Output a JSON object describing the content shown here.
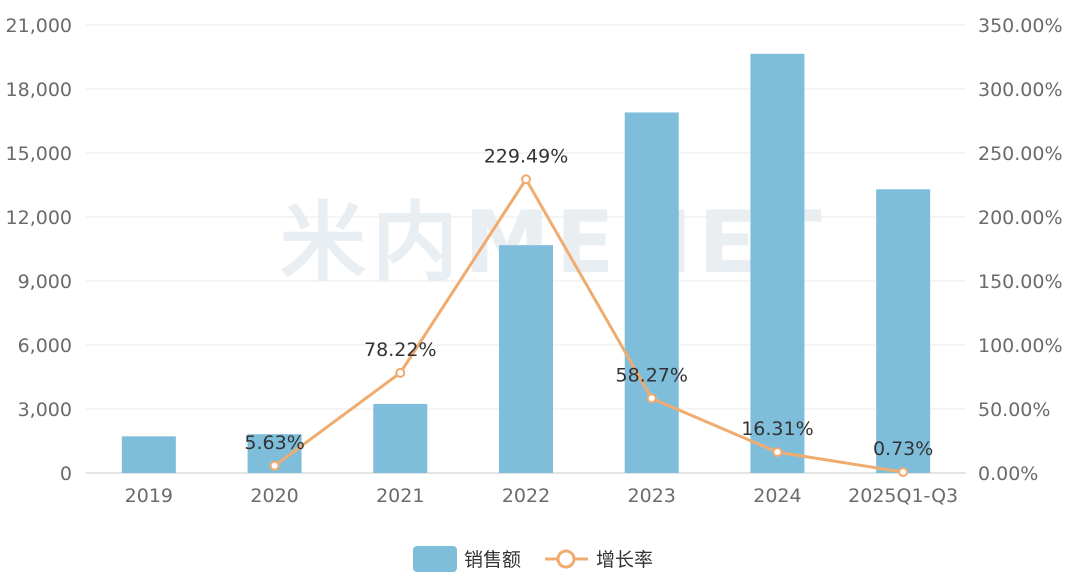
{
  "watermark": "米内MENET",
  "chart_data": {
    "type": "bar",
    "categories": [
      "2019",
      "2020",
      "2021",
      "2022",
      "2023",
      "2024",
      "2025Q1-Q3"
    ],
    "series": [
      {
        "name": "销售额",
        "type": "bar",
        "axis": "left",
        "color": "#7fbedb",
        "values": [
          1720,
          1820,
          3240,
          10680,
          16900,
          19650,
          13300
        ]
      },
      {
        "name": "增长率",
        "type": "line",
        "axis": "right",
        "color": "#f0ac6f",
        "values": [
          null,
          5.63,
          78.22,
          229.49,
          58.27,
          16.31,
          0.73
        ],
        "labels": [
          null,
          "5.63%",
          "78.22%",
          "229.49%",
          "58.27%",
          "16.31%",
          "0.73%"
        ]
      }
    ],
    "y_left": {
      "ylim": [
        0,
        21000
      ],
      "ticks": [
        0,
        3000,
        6000,
        9000,
        12000,
        15000,
        18000,
        21000
      ],
      "tick_labels": [
        "0",
        "3,000",
        "6,000",
        "9,000",
        "12,000",
        "15,000",
        "18,000",
        "21,000"
      ]
    },
    "y_right": {
      "ylim": [
        0,
        350
      ],
      "ticks": [
        0,
        50,
        100,
        150,
        200,
        250,
        300,
        350
      ],
      "tick_labels": [
        "0.00%",
        "50.00%",
        "100.00%",
        "150.00%",
        "200.00%",
        "250.00%",
        "300.00%",
        "350.00%"
      ]
    },
    "grid": true,
    "legend": "bottom-center",
    "legend_items": [
      "销售额",
      "增长率"
    ]
  }
}
